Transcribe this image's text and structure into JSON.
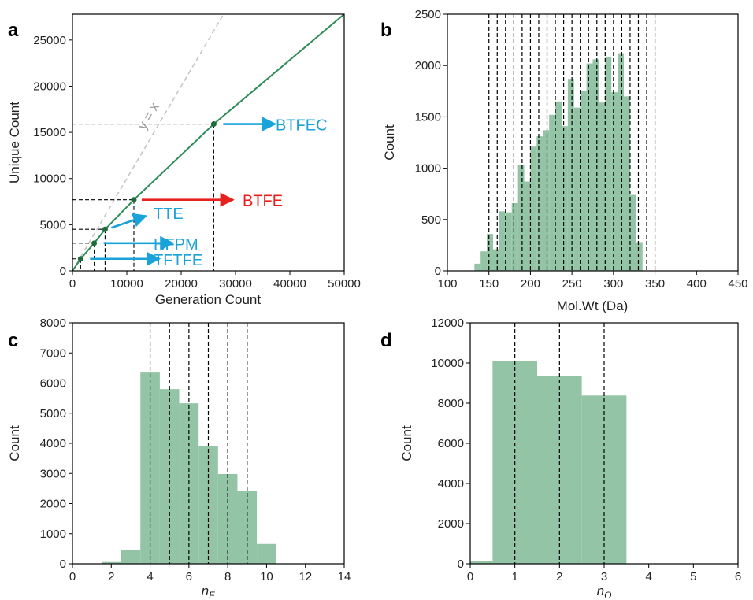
{
  "chart_data": [
    {
      "id": "a",
      "panel_label": "a",
      "type": "line",
      "xlabel": "Generation Count",
      "ylabel": "Unique Count",
      "xlim": [
        0,
        50000
      ],
      "ylim": [
        0,
        27800
      ],
      "xticks": [
        0,
        10000,
        20000,
        30000,
        40000,
        50000
      ],
      "yticks": [
        0,
        5000,
        10000,
        15000,
        20000,
        25000
      ],
      "reference_line": {
        "label": "y = x",
        "color": "#c6c6c6"
      },
      "series": [
        {
          "color": "#2e8b57",
          "x": [
            0,
            1500,
            4000,
            6000,
            11300,
            26000,
            50000
          ],
          "y": [
            0,
            1300,
            3000,
            4500,
            7700,
            15900,
            27800
          ]
        }
      ],
      "annotations": [
        {
          "label": "TFTFE",
          "x": 1500,
          "y": 1300,
          "color": "#1aa3d9"
        },
        {
          "label": "HFPM",
          "x": 4000,
          "y": 3000,
          "color": "#1aa3d9"
        },
        {
          "label": "TTE",
          "x": 6000,
          "y": 4500,
          "color": "#1aa3d9"
        },
        {
          "label": "BTFE",
          "x": 11300,
          "y": 7700,
          "color": "#e8211e"
        },
        {
          "label": "BTFEC",
          "x": 26000,
          "y": 15900,
          "color": "#1aa3d9"
        }
      ]
    },
    {
      "id": "b",
      "panel_label": "b",
      "type": "bar",
      "xlabel": "Mol.Wt (Da)",
      "ylabel": "Count",
      "xlim": [
        100,
        450
      ],
      "ylim": [
        0,
        2500
      ],
      "xticks": [
        100,
        150,
        200,
        250,
        300,
        350,
        400,
        450
      ],
      "yticks": [
        0,
        500,
        1000,
        1500,
        2000,
        2500
      ],
      "bin_width": 7.5,
      "bin_start": 132.5,
      "values": [
        70,
        190,
        360,
        210,
        580,
        570,
        660,
        1030,
        870,
        1210,
        1310,
        1370,
        1520,
        1650,
        1410,
        1870,
        1590,
        1750,
        2020,
        2060,
        1640,
        2080,
        1740,
        2120,
        1700,
        740,
        280
      ],
      "vlines": [
        150,
        160,
        170,
        180,
        190,
        200,
        210,
        220,
        230,
        240,
        250,
        260,
        270,
        280,
        290,
        300,
        310,
        320,
        330,
        340,
        350
      ],
      "color": "#93c4a6"
    },
    {
      "id": "c",
      "panel_label": "c",
      "type": "bar",
      "xlabel_base": "n",
      "xlabel_sub": "F",
      "ylabel": "Count",
      "xlim": [
        0,
        14
      ],
      "ylim": [
        0,
        8000
      ],
      "xticks": [
        0,
        2,
        4,
        6,
        8,
        10,
        12,
        14
      ],
      "yticks": [
        0,
        1000,
        2000,
        3000,
        4000,
        5000,
        6000,
        7000,
        8000
      ],
      "bin_width": 1,
      "bin_start": 1.5,
      "values": [
        60,
        470,
        6350,
        5800,
        5330,
        3920,
        2980,
        2430,
        660
      ],
      "vlines": [
        4,
        5,
        6,
        7,
        8,
        9
      ],
      "color": "#93c4a6"
    },
    {
      "id": "d",
      "panel_label": "d",
      "type": "bar",
      "xlabel_base": "n",
      "xlabel_sub": "O",
      "ylabel": "Count",
      "xlim": [
        0,
        6
      ],
      "ylim": [
        0,
        12000
      ],
      "xticks": [
        0,
        1,
        2,
        3,
        4,
        5,
        6
      ],
      "yticks": [
        0,
        2000,
        4000,
        6000,
        8000,
        10000,
        12000
      ],
      "bin_width": 0.5,
      "bin_start": 0,
      "values": [
        150,
        10100,
        10100,
        9350,
        9350,
        8380,
        8380
      ],
      "vlines": [
        1,
        2,
        3
      ],
      "color": "#93c4a6"
    }
  ]
}
